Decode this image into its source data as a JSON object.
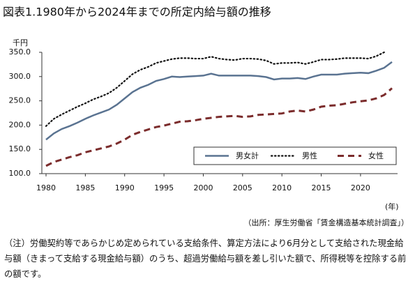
{
  "chart_data": {
    "type": "line",
    "title": "図表1.1980年から2024年までの所定内給与額の推移",
    "y_unit": "千円",
    "x_unit": "(年)",
    "source": "（出所：厚生労働省「賃金構造基本統計調査」）",
    "note": "（注）労働契約等であらかじめ定められている支給条件、算定方法により6月分として支給された現金給与額（きまって支給する現金給与額）のうち、超過労働給与額を差し引いた額で、所得税等を控除する前の額です。",
    "x": [
      1980,
      1981,
      1982,
      1983,
      1984,
      1985,
      1986,
      1987,
      1988,
      1989,
      1990,
      1991,
      1992,
      1993,
      1994,
      1995,
      1996,
      1997,
      1998,
      1999,
      2000,
      2001,
      2002,
      2003,
      2004,
      2005,
      2006,
      2007,
      2008,
      2009,
      2010,
      2011,
      2012,
      2013,
      2014,
      2015,
      2016,
      2017,
      2018,
      2019,
      2020,
      2021,
      2022,
      2023,
      2024
    ],
    "series": [
      {
        "name": "男女計",
        "color": "#5a7391",
        "dash": "solid",
        "values": [
          170,
          183,
          192,
          198,
          205,
          213,
          220,
          226,
          232,
          242,
          255,
          268,
          277,
          283,
          291,
          295,
          300,
          299,
          300,
          301,
          302,
          306,
          302,
          302,
          302,
          302,
          302,
          301,
          299,
          294,
          296,
          296,
          297,
          295,
          300,
          304,
          304,
          304,
          306,
          307,
          308,
          307,
          312,
          318,
          330
        ]
      },
      {
        "name": "男性",
        "color": "#111111",
        "dash": "dotted",
        "values": [
          198,
          213,
          222,
          230,
          238,
          245,
          253,
          259,
          266,
          277,
          291,
          305,
          314,
          320,
          328,
          332,
          336,
          338,
          338,
          337,
          337,
          341,
          337,
          335,
          334,
          337,
          337,
          336,
          333,
          326,
          328,
          328,
          329,
          326,
          330,
          335,
          335,
          336,
          338,
          338,
          338,
          337,
          342,
          350,
          null
        ]
      },
      {
        "name": "女性",
        "color": "#7b2c2c",
        "dash": "dashed",
        "values": [
          116,
          124,
          129,
          134,
          138,
          144,
          148,
          152,
          156,
          162,
          170,
          180,
          186,
          191,
          196,
          199,
          203,
          207,
          208,
          210,
          213,
          215,
          217,
          218,
          219,
          217,
          218,
          221,
          222,
          223,
          224,
          228,
          230,
          228,
          232,
          238,
          240,
          241,
          244,
          247,
          249,
          251,
          255,
          262,
          276
        ]
      }
    ],
    "xlim": [
      1980,
      2024
    ],
    "xticks": [
      1980,
      1985,
      1990,
      1995,
      2000,
      2005,
      2010,
      2015,
      2020
    ],
    "ylim": [
      100,
      350
    ],
    "yticks": [
      {
        "value": 100,
        "label": "100.0"
      },
      {
        "value": 150,
        "label": "150.0"
      },
      {
        "value": 200,
        "label": "200.0"
      },
      {
        "value": 250,
        "label": "250.0"
      },
      {
        "value": 300,
        "label": "300.0"
      },
      {
        "value": 350,
        "label": "350.0"
      }
    ],
    "legend": "bottom-right"
  }
}
